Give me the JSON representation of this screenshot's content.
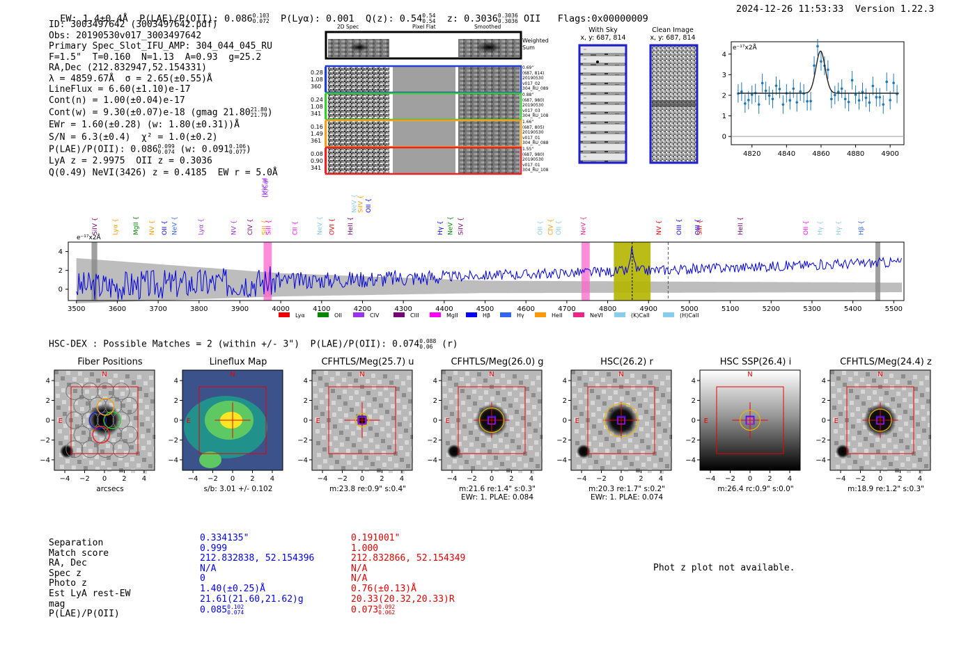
{
  "header": {
    "ew": "EW: 1.4±0.4Å",
    "plae": "P(LAE)/P(OII): 0.086",
    "plae_up": "0.103",
    "plae_lo": "0.072",
    "plya": "P(Lyα): 0.001",
    "qz": "Q(z): 0.54",
    "qz_up": "0.54",
    "qz_lo": "0.54",
    "z": "z: 0.3036",
    "z_up": "0.3036",
    "z_lo": "0.3036",
    "z_line": "OII",
    "flags": "Flags:0x00000009",
    "datetime": "2024-12-26 11:53:33",
    "version": "Version 1.22.3"
  },
  "info": {
    "id": "ID: 3003497642 (3003497642.pdf)",
    "obs": "Obs: 20190530v017_3003497642",
    "primary": "Primary Spec_Slot_IFU_AMP: 304_044_045_RU",
    "params": "F=1.5\"  T=0.160  N=1.13  A=0.93  g=25.2",
    "radec": "RA,Dec (212.832947,52.154331)",
    "lambda": "λ = 4859.67Å  σ = 2.65(±0.55)Å",
    "lineflux": "LineFlux = 6.60(±1.10)e-17",
    "contn": "Cont(n) = 1.00(±0.04)e-17",
    "contw": "Cont(w) = 9.30(±0.07)e-18 (gmag 21.80",
    "contw_up": "21.80",
    "contw_lo": "21.79",
    "ewr": "EWr = 1.60(±0.28) (w: 1.80(±0.31))Å",
    "sn": "S/N = 6.3(±0.4)  χ² = 1.0(±0.2)",
    "plae": "P(LAE)/P(OII): 0.086",
    "plae_up": "0.099",
    "plae_lo": "0.074",
    "plae_w": "(w: 0.091",
    "plae_w_up": "0.106",
    "plae_w_lo": "0.077",
    "lyaz": "LyA z = 2.9975  OII z = 0.3036",
    "qline": "Q(0.49) NeVI(3426) z = 0.4185  EW r = 5.0Å"
  },
  "cutouts": {
    "col_2d": "2D Spec",
    "col_flat": "Pixel Flat",
    "col_smooth": "Smoothed",
    "weighted": "Weighted Sum",
    "rows": [
      {
        "a": "0.28",
        "b": "1.08",
        "c": "360",
        "d1": "0.69\"",
        "d2": "(687, 814)",
        "d3": "20190530",
        "d4": "v017_02",
        "d5": "304_RU_089",
        "color": "#1f3fd0"
      },
      {
        "a": "0.24",
        "b": "1.08",
        "c": "341",
        "d1": "0.88\"",
        "d2": "(687, 980)",
        "d3": "20190530",
        "d4": "v017_03",
        "d5": "304_RU_108",
        "color": "#33cc33"
      },
      {
        "a": "0.16",
        "b": "1.49",
        "c": "361",
        "d1": "1.66\"",
        "d2": "(687, 805)",
        "d3": "20190530",
        "d4": "v017_01",
        "d5": "304_RU_088",
        "color": "#f0a020"
      },
      {
        "a": "0.08",
        "b": "0.90",
        "c": "341",
        "d1": "1.55\"",
        "d2": "(687, 980)",
        "d3": "20190530",
        "d4": "v017_01",
        "d5": "304_RU_108",
        "color": "#ee2222"
      }
    ]
  },
  "sky": {
    "title1": "With Sky",
    "sub1": "x, y: 687, 814",
    "title2": "Clean Image",
    "sub2": "x, y: 687, 814"
  },
  "zoom_plot": {
    "unit": "e⁻¹⁷x2Å",
    "xticks": [
      "4820",
      "4840",
      "4860",
      "4880",
      "4900"
    ],
    "yticks": [
      "0",
      "1",
      "2",
      "3",
      "4"
    ]
  },
  "full_spec": {
    "unit": "e⁻¹⁷x2Å",
    "xticks": [
      "3500",
      "3600",
      "3700",
      "3800",
      "3900",
      "4000",
      "4100",
      "4200",
      "4300",
      "4400",
      "4500",
      "4600",
      "4700",
      "4800",
      "4900",
      "5000",
      "5100",
      "5200",
      "5300",
      "5400",
      "5500"
    ],
    "yticks": [
      "0",
      "2",
      "4"
    ],
    "legend": [
      {
        "label": "Lyα",
        "color": "#ee0000"
      },
      {
        "label": "OII",
        "color": "#008800"
      },
      {
        "label": "CIV",
        "color": "#9933ee"
      },
      {
        "label": "CIII",
        "color": "#770077"
      },
      {
        "label": "MgII",
        "color": "#ff00ff"
      },
      {
        "label": "Hβ",
        "color": "#0000ff"
      },
      {
        "label": "Hγ",
        "color": "#3366ee"
      },
      {
        "label": "HeII",
        "color": "#ff9900"
      },
      {
        "label": "NeVI",
        "color": "#ee2288"
      },
      {
        "label": "(K)CaII",
        "color": "#88ccee"
      },
      {
        "label": "(H)CaII",
        "color": "#88ccee"
      }
    ],
    "lines": [
      {
        "label": "SiIV",
        "color": "#770077"
      },
      {
        "label": "Lyα",
        "color": "#ff9900"
      },
      {
        "label": "MgII",
        "color": "#008800"
      },
      {
        "label": "NV",
        "color": "#ff9900"
      },
      {
        "label": "OII",
        "color": "#0000ff"
      },
      {
        "label": "NeV",
        "color": "#3366ee"
      },
      {
        "label": "Lyα",
        "color": "#9933ee"
      },
      {
        "label": "NV",
        "color": "#9933ee"
      },
      {
        "label": "CIV",
        "color": "#770077"
      },
      {
        "label": "SiII",
        "color": "#ff9900"
      },
      {
        "label": "SiII",
        "color": "#ff00ff"
      },
      {
        "label": "CII",
        "color": "#ff00ff"
      },
      {
        "label": "NeV",
        "color": "#88ccee"
      },
      {
        "label": "OVI",
        "color": "#ee0000"
      },
      {
        "label": "HeII",
        "color": "#770077"
      },
      {
        "label": "NeV",
        "color": "#88ccee"
      },
      {
        "label": "SiIV",
        "color": "#ff9900"
      },
      {
        "label": "OII",
        "color": "#0000ff"
      },
      {
        "label": "Hγ",
        "color": "#0000ff"
      },
      {
        "label": "NeV",
        "color": "#008800"
      },
      {
        "label": "SiIV",
        "color": "#770077"
      },
      {
        "label": "OII",
        "color": "#88ccee"
      },
      {
        "label": "CIV",
        "color": "#ff9900"
      },
      {
        "label": "OII",
        "color": "#88ccee"
      },
      {
        "label": "NeV",
        "color": "#ee2288"
      },
      {
        "label": "NV",
        "color": "#ee0000"
      },
      {
        "label": "OIII",
        "color": "#0000ff"
      },
      {
        "label": "OIII",
        "color": "#0000ff"
      },
      {
        "label": "SiII",
        "color": "#ee0000"
      },
      {
        "label": "HeII",
        "color": "#770077"
      },
      {
        "label": "OII",
        "color": "#ff00ff"
      },
      {
        "label": "Hγ",
        "color": "#88ccee"
      },
      {
        "label": "Hγ",
        "color": "#88ccee"
      },
      {
        "label": "Hβ",
        "color": "#3366ee"
      },
      {
        "label": "(H)CaII",
        "color": "#9933ee"
      },
      {
        "label": "(K)CaII",
        "color": "#9933ee"
      }
    ]
  },
  "hsc": {
    "title": "HSC-DEX : Possible Matches = 2 (within +/- 3\")  P(LAE)/P(OII): 0.074",
    "up": "0.088",
    "lo": "0.06",
    "band": "(r)"
  },
  "panels": [
    {
      "title": "Fiber Positions",
      "cap1": "arcsecs",
      "cap2": ""
    },
    {
      "title": "Lineflux Map",
      "cap1": "s/b: 3.01 +/- 0.102",
      "cap2": ""
    },
    {
      "title": "CFHTLS/Meg(25.7) u",
      "cap1": "m:23.8  re:0.9\"  s:0.4\"",
      "cap2": ""
    },
    {
      "title": "CFHTLS/Meg(26.0) g",
      "cap1": "m:21.6  re:1.4\"  s:0.3\"",
      "cap2": "EWr: 1. PLAE: 0.084"
    },
    {
      "title": "HSC(26.2) r",
      "cap1": "m:20.3  re:1.7\"  s:0.2\"",
      "cap2": "EWr: 1. PLAE: 0.074"
    },
    {
      "title": "HSC SSP(26.4) i",
      "cap1": "m:26.4  rc:0.9\"  s:0.0\"",
      "cap2": ""
    },
    {
      "title": "CFHTLS/Meg(24.4) z",
      "cap1": "m:18.9  re:1.2\"  s:0.3\"",
      "cap2": ""
    }
  ],
  "panel_axis": {
    "ticks": [
      "4",
      "2",
      "0",
      "−2",
      "−4"
    ],
    "xticks": [
      "−4",
      "−2",
      "0",
      "2",
      "4"
    ],
    "north": "N",
    "east": "E"
  },
  "table": {
    "labels": [
      "Separation",
      "Match score",
      "RA, Dec",
      "Spec z",
      "Photo z",
      "Est LyA rest-EW",
      "mag",
      "P(LAE)/P(OII)"
    ],
    "col1": [
      "0.334135\"",
      "0.999",
      "212.832838, 52.154396",
      "N/A",
      "0",
      "1.40(±0.25)Å",
      "21.61(21.60,21.62)g",
      "0.085"
    ],
    "col1_up": "0.102",
    "col1_lo": "0.074",
    "col2": [
      "0.191001\"",
      "1.000",
      "212.832866, 52.154349",
      "N/A",
      "N/A",
      "0.76(±0.13)Å",
      "20.33(20.32,20.33)R",
      "0.073"
    ],
    "col2_up": "0.092",
    "col2_lo": "0.062",
    "photz_msg": "Phot z plot not available."
  }
}
